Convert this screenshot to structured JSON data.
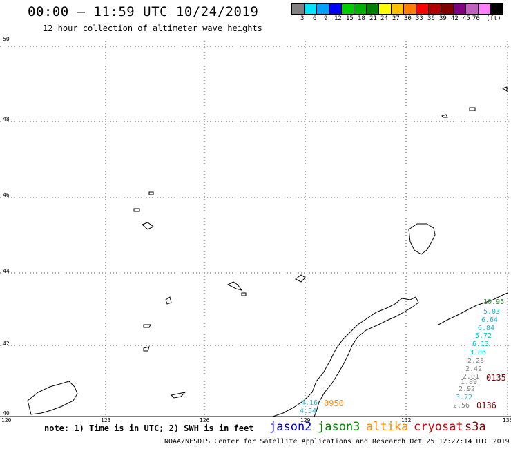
{
  "header": {
    "title": "00:00 – 11:59 UTC 10/24/2019",
    "subtitle": "12 hour collection of altimeter wave heights"
  },
  "legend": {
    "colors": [
      "#808080",
      "#00e5ff",
      "#00a0ff",
      "#0000ff",
      "#00d000",
      "#00b000",
      "#008000",
      "#ffff00",
      "#ffc000",
      "#ff8000",
      "#ff0000",
      "#b00000",
      "#800000",
      "#800080",
      "#c060c0",
      "#ff80ff",
      "#000000"
    ],
    "labels": [
      "3",
      "6",
      "9",
      "12",
      "15",
      "18",
      "21",
      "24",
      "27",
      "30",
      "33",
      "36",
      "39",
      "42",
      "45",
      "70",
      "(ft)"
    ]
  },
  "axes": {
    "lat_labels": [
      "50",
      "48",
      "46",
      "44",
      "42",
      "40"
    ],
    "lon_labels": [
      "120",
      "123",
      "126",
      "129",
      "132",
      "135"
    ]
  },
  "observations": [
    {
      "value": "10.95",
      "color": "#228b22"
    },
    {
      "value": "5.03",
      "color": "#00c8d8"
    },
    {
      "value": "6.64",
      "color": "#00c8d8"
    },
    {
      "value": "6.84",
      "color": "#00c8d8"
    },
    {
      "value": "5.72",
      "color": "#00c8d8"
    },
    {
      "value": "6.13",
      "color": "#00c8d8"
    },
    {
      "value": "3.86",
      "color": "#00c8d8"
    },
    {
      "value": "2.28",
      "color": "#808080"
    },
    {
      "value": "2.42",
      "color": "#808080"
    },
    {
      "value": "2.01",
      "color": "#808080"
    },
    {
      "value": "1.89",
      "color": "#808080"
    },
    {
      "value": "2.92",
      "color": "#808080"
    },
    {
      "value": "3.72",
      "color": "#00c8d8"
    },
    {
      "value": "2.56",
      "color": "#808080"
    },
    {
      "value": "4.16",
      "color": "#00c8d8"
    },
    {
      "value": "4.54",
      "color": "#00c8d8"
    }
  ],
  "pass_times": [
    {
      "value": "0950",
      "color": "#ff8c00"
    },
    {
      "value": "0135",
      "color": "#800000"
    },
    {
      "value": "0136",
      "color": "#800000"
    }
  ],
  "note": "note: 1) Time is in UTC; 2) SWH is in feet",
  "satellites": [
    {
      "name": "jason2",
      "color": "#0000cc"
    },
    {
      "name": "jason3",
      "color": "#008800"
    },
    {
      "name": "altika",
      "color": "#ff8c00"
    },
    {
      "name": "cryosat",
      "color": "#cc0000"
    },
    {
      "name": "s3a",
      "color": "#800000"
    }
  ],
  "footer": "NOAA/NESDIS Center for Satellite Applications and Research    Oct 25 12:27:14 UTC 2019"
}
